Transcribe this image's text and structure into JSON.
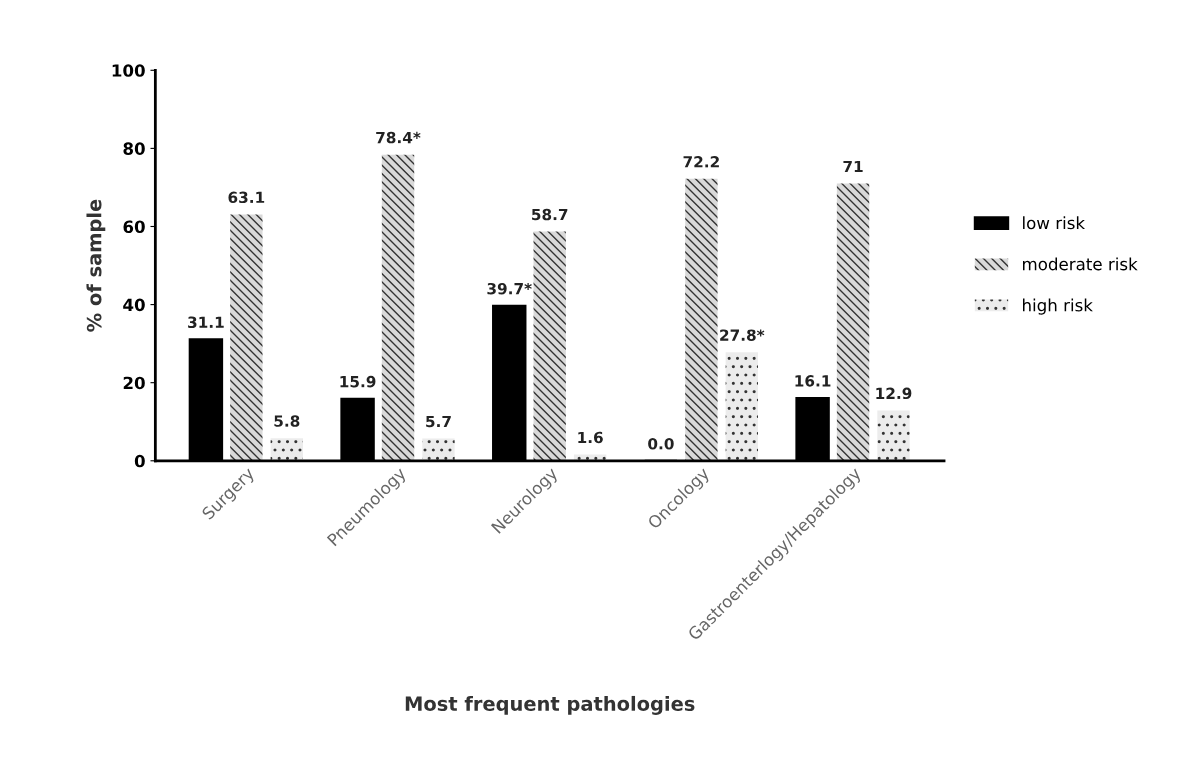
{
  "chart_data": {
    "type": "bar",
    "xlabel": "Most frequent pathologies",
    "ylabel": "% of sample",
    "categories": [
      "Surgery",
      "Pneumology",
      "Neurology",
      "Oncology",
      "Gastroenterlogy/Hepatology"
    ],
    "series": [
      {
        "name": "low risk",
        "color": "#000000",
        "values": [
          31.1,
          15.9,
          39.7,
          0.0,
          16.1
        ],
        "value_labels": [
          "31.1",
          "15.9",
          "39.7*",
          "0.0",
          "16.1"
        ]
      },
      {
        "name": "moderate risk",
        "color": "#d9d9d9",
        "values": [
          63.1,
          78.4,
          58.7,
          72.2,
          71
        ],
        "value_labels": [
          "63.1",
          "78.4*",
          "58.7",
          "72.2",
          "71"
        ]
      },
      {
        "name": "high risk",
        "color": "#ececec",
        "values": [
          5.8,
          5.7,
          1.6,
          27.8,
          12.9
        ],
        "value_labels": [
          "5.8",
          "5.7",
          "1.6",
          "27.8*",
          "12.9"
        ]
      }
    ],
    "ylim": [
      0,
      100
    ],
    "yticks": [
      0,
      20,
      40,
      60,
      80,
      100
    ],
    "grid": false,
    "legend": "right"
  }
}
